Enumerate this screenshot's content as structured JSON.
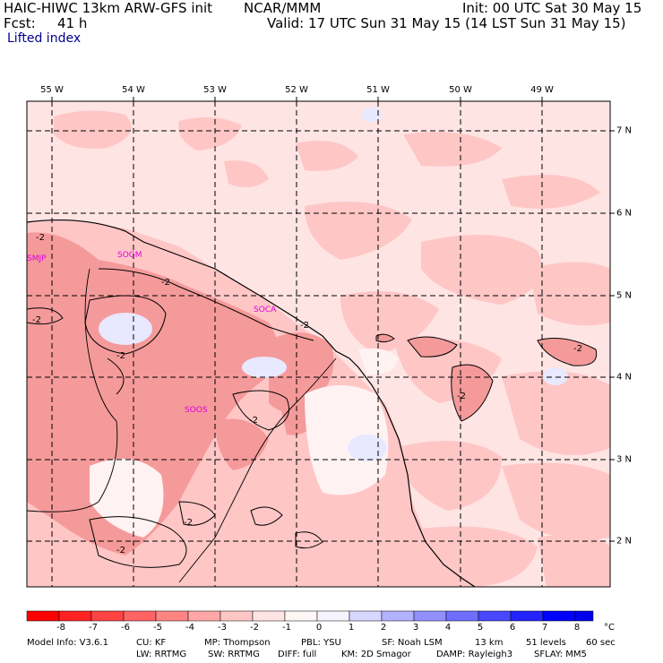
{
  "header": {
    "model": "HAIC-HIWC 13km ARW-GFS init",
    "org": "NCAR/MMM",
    "init": "Init: 00 UTC Sat 30 May 15",
    "fcst_label": "Fcst:",
    "fcst_value": "41 h",
    "valid": "Valid: 17 UTC Sun 31 May 15 (14 LST Sun 31 May 15)",
    "field": "Lifted index"
  },
  "map": {
    "lon_labels": [
      "55 W",
      "54 W",
      "53 W",
      "52 W",
      "51 W",
      "50 W",
      "49 W"
    ],
    "lat_labels": [
      "7 N",
      "6 N",
      "5 N",
      "4 N",
      "3 N",
      "2 N"
    ],
    "stations": [
      "SMJP",
      "SOGM",
      "SOCA",
      "SOOS"
    ],
    "contour_label": "-2",
    "colors": {
      "light_pink": "#ffe4e4",
      "pink": "#ffc6c6",
      "medium": "#f59a9a",
      "pale": "#fff2f2",
      "lavender": "#e8e8ff",
      "station_text": "#e000e0"
    }
  },
  "colorbar": {
    "unit": "°C",
    "labels": [
      "-8",
      "-7",
      "-6",
      "-5",
      "-4",
      "-3",
      "-2",
      "-1",
      "0",
      "1",
      "2",
      "3",
      "4",
      "5",
      "6",
      "7",
      "8"
    ],
    "colors": [
      "#ff0000",
      "#ff2222",
      "#ff4343",
      "#ff6464",
      "#ff8585",
      "#ffa6a6",
      "#ffc6c6",
      "#ffe4e4",
      "#fff6f6",
      "#f4f4ff",
      "#d6d6ff",
      "#b2b2ff",
      "#9090ff",
      "#6e6eff",
      "#4848ff",
      "#2424ff",
      "#0000ff",
      "#0000ea"
    ]
  },
  "model_info": {
    "row1": [
      "Model Info: V3.6.1",
      "CU: KF",
      "MP: Thompson",
      "PBL: YSU",
      "SF: Noah LSM",
      "13 km",
      "51 levels",
      "60 sec"
    ],
    "row2": [
      "LW: RRTMG",
      "SW: RRTMG",
      "DIFF: full",
      "KM: 2D Smagor",
      "DAMP: Rayleigh3",
      "SFLAY: MM5"
    ]
  }
}
